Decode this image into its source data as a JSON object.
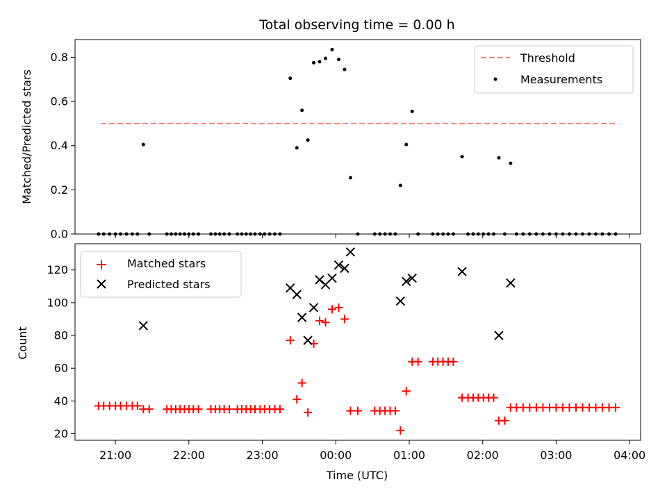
{
  "chart_data": [
    {
      "type": "scatter",
      "title": "Total observing time = 0.00 h",
      "ylabel": "Matched/Predicted stars",
      "xlabel": "",
      "xlim": [
        20.45,
        28.15
      ],
      "ylim": [
        0,
        0.88
      ],
      "yticks": [
        0.0,
        0.2,
        0.4,
        0.6,
        0.8
      ],
      "ytick_labels": [
        "0.0",
        "0.2",
        "0.4",
        "0.6",
        "0.8"
      ],
      "xticks": [
        21,
        22,
        23,
        24,
        25,
        26,
        27,
        28
      ],
      "legend": {
        "position": "top-right",
        "entries": [
          {
            "label": "Threshold",
            "style": "dashed-line",
            "color": "#ff7f7f"
          },
          {
            "label": "Measurements",
            "style": "dot",
            "color": "#000000"
          }
        ]
      },
      "threshold": {
        "name": "Threshold",
        "value": 0.5,
        "x_range": [
          20.8,
          27.8
        ],
        "color": "#ff7f7f"
      },
      "series": [
        {
          "name": "Measurements",
          "color": "#000000",
          "points": [
            [
              20.77,
              0
            ],
            [
              20.84,
              0
            ],
            [
              20.92,
              0
            ],
            [
              21.0,
              0
            ],
            [
              21.07,
              0
            ],
            [
              21.15,
              0
            ],
            [
              21.23,
              0
            ],
            [
              21.3,
              0
            ],
            [
              21.38,
              0.405
            ],
            [
              21.46,
              0
            ],
            [
              21.7,
              0
            ],
            [
              21.76,
              0
            ],
            [
              21.82,
              0
            ],
            [
              21.88,
              0
            ],
            [
              21.94,
              0
            ],
            [
              22.0,
              0
            ],
            [
              22.06,
              0
            ],
            [
              22.13,
              0
            ],
            [
              22.3,
              0
            ],
            [
              22.36,
              0
            ],
            [
              22.42,
              0
            ],
            [
              22.48,
              0
            ],
            [
              22.55,
              0
            ],
            [
              22.66,
              0
            ],
            [
              22.72,
              0
            ],
            [
              22.78,
              0
            ],
            [
              22.84,
              0
            ],
            [
              22.9,
              0
            ],
            [
              22.97,
              0
            ],
            [
              23.03,
              0
            ],
            [
              23.1,
              0
            ],
            [
              23.17,
              0
            ],
            [
              23.24,
              0
            ],
            [
              23.38,
              0.705
            ],
            [
              23.47,
              0.39
            ],
            [
              23.54,
              0.56
            ],
            [
              23.62,
              0.425
            ],
            [
              23.7,
              0.775
            ],
            [
              23.78,
              0.78
            ],
            [
              23.86,
              0.795
            ],
            [
              23.95,
              0.835
            ],
            [
              24.04,
              0.79
            ],
            [
              24.12,
              0.745
            ],
            [
              24.2,
              0.255
            ],
            [
              24.3,
              0
            ],
            [
              24.53,
              0
            ],
            [
              24.6,
              0
            ],
            [
              24.67,
              0
            ],
            [
              24.74,
              0
            ],
            [
              24.81,
              0
            ],
            [
              24.88,
              0.22
            ],
            [
              24.96,
              0.405
            ],
            [
              25.04,
              0.555
            ],
            [
              25.12,
              0
            ],
            [
              25.32,
              0
            ],
            [
              25.39,
              0
            ],
            [
              25.46,
              0
            ],
            [
              25.53,
              0
            ],
            [
              25.6,
              0
            ],
            [
              25.72,
              0.35
            ],
            [
              25.8,
              0
            ],
            [
              25.87,
              0
            ],
            [
              25.94,
              0
            ],
            [
              26.01,
              0
            ],
            [
              26.08,
              0
            ],
            [
              26.15,
              0
            ],
            [
              26.22,
              0.345
            ],
            [
              26.3,
              0
            ],
            [
              26.38,
              0.32
            ],
            [
              26.46,
              0
            ],
            [
              26.55,
              0
            ],
            [
              26.64,
              0
            ],
            [
              26.73,
              0
            ],
            [
              26.82,
              0
            ],
            [
              26.91,
              0
            ],
            [
              27.0,
              0
            ],
            [
              27.09,
              0
            ],
            [
              27.18,
              0
            ],
            [
              27.27,
              0
            ],
            [
              27.36,
              0
            ],
            [
              27.45,
              0
            ],
            [
              27.54,
              0
            ],
            [
              27.63,
              0
            ],
            [
              27.72,
              0
            ],
            [
              27.81,
              0
            ]
          ]
        }
      ]
    },
    {
      "type": "scatter",
      "title": "",
      "xlabel": "Time (UTC)",
      "ylabel": "Count",
      "xlim": [
        20.45,
        28.15
      ],
      "ylim": [
        16,
        136
      ],
      "yticks": [
        20,
        40,
        60,
        80,
        100,
        120
      ],
      "ytick_labels": [
        "20",
        "40",
        "60",
        "80",
        "100",
        "120"
      ],
      "xticks": [
        21,
        22,
        23,
        24,
        25,
        26,
        27,
        28
      ],
      "xtick_labels": [
        "21:00",
        "22:00",
        "23:00",
        "00:00",
        "01:00",
        "02:00",
        "03:00",
        "04:00"
      ],
      "legend": {
        "position": "top-left",
        "entries": [
          {
            "label": "Matched stars",
            "style": "plus",
            "color": "#ff0000"
          },
          {
            "label": "Predicted stars",
            "style": "x",
            "color": "#000000"
          }
        ]
      },
      "series": [
        {
          "name": "Matched stars",
          "marker": "plus",
          "color": "#ff0000",
          "points": [
            [
              20.77,
              37
            ],
            [
              20.84,
              37
            ],
            [
              20.92,
              37
            ],
            [
              21.0,
              37
            ],
            [
              21.07,
              37
            ],
            [
              21.15,
              37
            ],
            [
              21.23,
              37
            ],
            [
              21.3,
              37
            ],
            [
              21.38,
              35
            ],
            [
              21.46,
              35
            ],
            [
              21.7,
              35
            ],
            [
              21.76,
              35
            ],
            [
              21.82,
              35
            ],
            [
              21.88,
              35
            ],
            [
              21.94,
              35
            ],
            [
              22.0,
              35
            ],
            [
              22.06,
              35
            ],
            [
              22.13,
              35
            ],
            [
              22.3,
              35
            ],
            [
              22.36,
              35
            ],
            [
              22.42,
              35
            ],
            [
              22.48,
              35
            ],
            [
              22.55,
              35
            ],
            [
              22.66,
              35
            ],
            [
              22.72,
              35
            ],
            [
              22.78,
              35
            ],
            [
              22.84,
              35
            ],
            [
              22.9,
              35
            ],
            [
              22.97,
              35
            ],
            [
              23.03,
              35
            ],
            [
              23.1,
              35
            ],
            [
              23.17,
              35
            ],
            [
              23.24,
              35
            ],
            [
              23.38,
              77
            ],
            [
              23.47,
              41
            ],
            [
              23.54,
              51
            ],
            [
              23.62,
              33
            ],
            [
              23.7,
              75
            ],
            [
              23.78,
              89
            ],
            [
              23.86,
              88
            ],
            [
              23.95,
              96
            ],
            [
              24.04,
              97
            ],
            [
              24.12,
              90
            ],
            [
              24.2,
              34
            ],
            [
              24.3,
              34
            ],
            [
              24.53,
              34
            ],
            [
              24.6,
              34
            ],
            [
              24.67,
              34
            ],
            [
              24.74,
              34
            ],
            [
              24.81,
              34
            ],
            [
              24.88,
              22
            ],
            [
              24.96,
              46
            ],
            [
              25.04,
              64
            ],
            [
              25.12,
              64
            ],
            [
              25.32,
              64
            ],
            [
              25.39,
              64
            ],
            [
              25.46,
              64
            ],
            [
              25.53,
              64
            ],
            [
              25.6,
              64
            ],
            [
              25.72,
              42
            ],
            [
              25.8,
              42
            ],
            [
              25.87,
              42
            ],
            [
              25.94,
              42
            ],
            [
              26.01,
              42
            ],
            [
              26.08,
              42
            ],
            [
              26.15,
              42
            ],
            [
              26.22,
              28
            ],
            [
              26.3,
              28
            ],
            [
              26.38,
              36
            ],
            [
              26.46,
              36
            ],
            [
              26.55,
              36
            ],
            [
              26.64,
              36
            ],
            [
              26.73,
              36
            ],
            [
              26.82,
              36
            ],
            [
              26.91,
              36
            ],
            [
              27.0,
              36
            ],
            [
              27.09,
              36
            ],
            [
              27.18,
              36
            ],
            [
              27.27,
              36
            ],
            [
              27.36,
              36
            ],
            [
              27.45,
              36
            ],
            [
              27.54,
              36
            ],
            [
              27.63,
              36
            ],
            [
              27.72,
              36
            ],
            [
              27.81,
              36
            ]
          ]
        },
        {
          "name": "Predicted stars",
          "marker": "x",
          "color": "#000000",
          "points": [
            [
              21.38,
              86
            ],
            [
              23.38,
              109
            ],
            [
              23.47,
              105
            ],
            [
              23.54,
              91
            ],
            [
              23.62,
              77
            ],
            [
              23.7,
              97
            ],
            [
              23.78,
              114
            ],
            [
              23.86,
              111
            ],
            [
              23.95,
              115
            ],
            [
              24.04,
              123
            ],
            [
              24.12,
              121
            ],
            [
              24.2,
              131
            ],
            [
              24.88,
              101
            ],
            [
              24.96,
              113
            ],
            [
              25.04,
              115
            ],
            [
              25.72,
              119
            ],
            [
              26.22,
              80
            ],
            [
              26.38,
              112
            ]
          ]
        }
      ]
    }
  ]
}
